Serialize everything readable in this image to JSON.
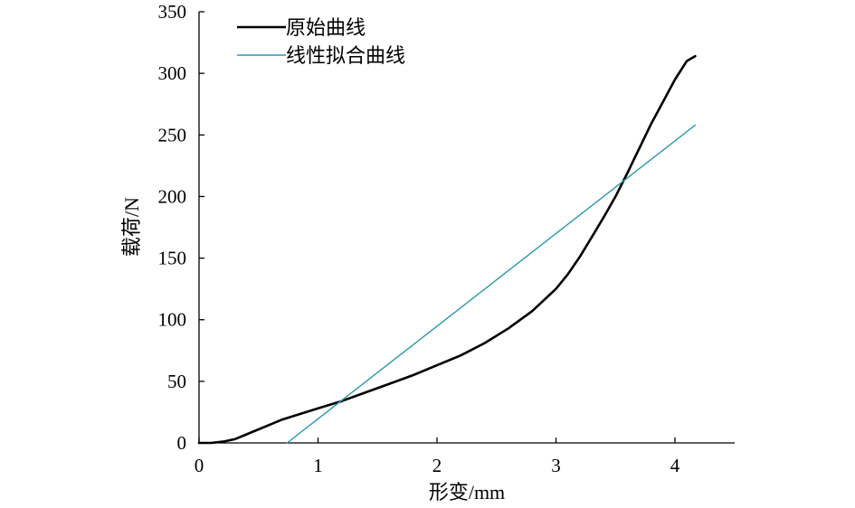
{
  "chart_data": {
    "type": "line",
    "xlabel": "形变/mm",
    "ylabel": "载荷/N",
    "xlim": [
      0,
      4.5
    ],
    "ylim": [
      0,
      350
    ],
    "xticks": [
      0,
      1,
      2,
      3,
      4
    ],
    "yticks": [
      0,
      50,
      100,
      150,
      200,
      250,
      300,
      350
    ],
    "grid": false,
    "legend_position": "top-left",
    "series": [
      {
        "name": "原始曲线",
        "color": "#000000",
        "x": [
          0.0,
          0.1,
          0.2,
          0.3,
          0.4,
          0.5,
          0.6,
          0.7,
          0.8,
          0.9,
          1.0,
          1.1,
          1.2,
          1.4,
          1.6,
          1.8,
          2.0,
          2.2,
          2.4,
          2.6,
          2.8,
          3.0,
          3.1,
          3.2,
          3.3,
          3.4,
          3.5,
          3.6,
          3.7,
          3.8,
          3.9,
          4.0,
          4.1,
          4.17
        ],
        "y": [
          0,
          0,
          1,
          3,
          7,
          11,
          15,
          19,
          22,
          25,
          28,
          31,
          34,
          41,
          48,
          55,
          63,
          71,
          81,
          93,
          107,
          125,
          137,
          151,
          167,
          183,
          200,
          219,
          239,
          259,
          277,
          295,
          310,
          314
        ]
      },
      {
        "name": "线性拟合曲线",
        "color": "#2a97ad",
        "x": [
          0.74,
          4.17
        ],
        "y": [
          0,
          258
        ]
      }
    ]
  }
}
